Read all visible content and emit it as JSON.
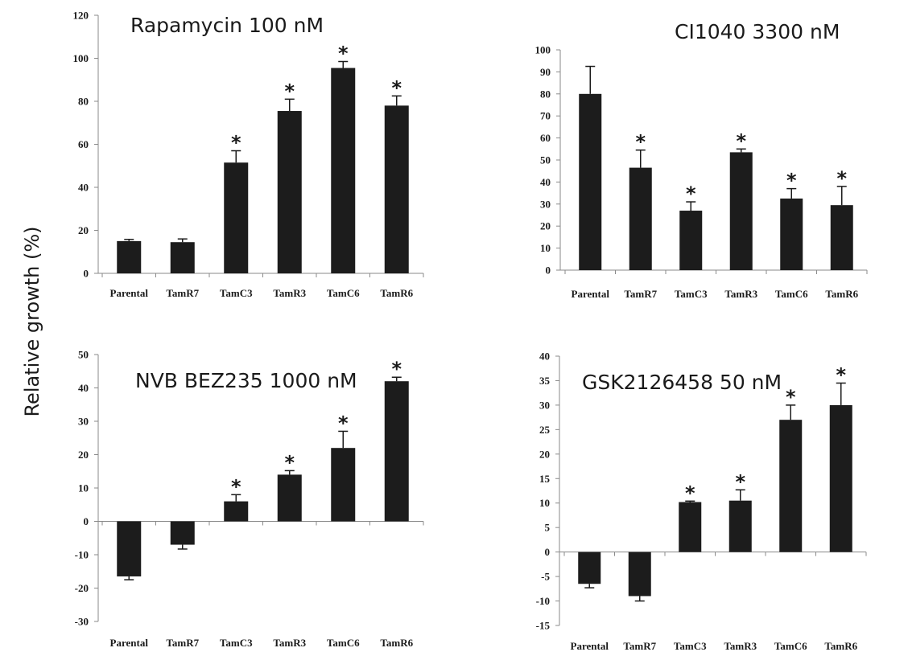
{
  "figure": {
    "ylabel": "Relative growth (%)"
  },
  "chart_data": [
    {
      "type": "bar",
      "title": "Rapamycin 100 nM",
      "categories": [
        "Parental",
        "TamR7",
        "TamC3",
        "TamR3",
        "TamC6",
        "TamR6"
      ],
      "values": [
        15,
        14.5,
        51.5,
        75.5,
        95.5,
        78
      ],
      "error": [
        0.8,
        1.5,
        5.5,
        5.5,
        3.0,
        4.5
      ],
      "significant": [
        false,
        false,
        true,
        true,
        true,
        true
      ],
      "significance_mark": "*",
      "ylim": [
        0,
        120
      ],
      "yticks": [
        0,
        20,
        40,
        60,
        80,
        100,
        120
      ],
      "bar_color": "#1c1c1c"
    },
    {
      "type": "bar",
      "title": "CI1040  3300 nM",
      "categories": [
        "Parental",
        "TamR7",
        "TamC3",
        "TamR3",
        "TamC6",
        "TamR6"
      ],
      "values": [
        80,
        46.5,
        27,
        53.5,
        32.5,
        29.5
      ],
      "error": [
        12.5,
        8.0,
        4.0,
        1.5,
        4.5,
        8.5
      ],
      "significant": [
        false,
        true,
        true,
        true,
        true,
        true
      ],
      "significance_mark": "*",
      "ylim": [
        0,
        100
      ],
      "yticks": [
        0,
        10,
        20,
        30,
        40,
        50,
        60,
        70,
        80,
        90,
        100
      ],
      "bar_color": "#1c1c1c"
    },
    {
      "type": "bar",
      "title": "NVB BEZ235 1000 nM",
      "categories": [
        "Parental",
        "TamR7",
        "TamC3",
        "TamR3",
        "TamC6",
        "TamR6"
      ],
      "values": [
        -16.5,
        -7,
        6,
        14,
        22,
        42
      ],
      "error": [
        1.0,
        1.3,
        2.0,
        1.2,
        5.0,
        1.2
      ],
      "significant": [
        false,
        false,
        true,
        true,
        true,
        true
      ],
      "significance_mark": "*",
      "ylim": [
        -30,
        50
      ],
      "yticks": [
        -30,
        -20,
        -10,
        0,
        10,
        20,
        30,
        40,
        50
      ],
      "bar_color": "#1c1c1c"
    },
    {
      "type": "bar",
      "title": "GSK2126458 50 nM",
      "categories": [
        "Parental",
        "TamR7",
        "TamC3",
        "TamR3",
        "TamC6",
        "TamR6"
      ],
      "values": [
        -6.5,
        -9,
        10.2,
        10.5,
        27,
        30
      ],
      "error": [
        0.8,
        1.0,
        0.2,
        2.2,
        3.0,
        4.5
      ],
      "significant": [
        false,
        false,
        true,
        true,
        true,
        true
      ],
      "significance_mark": "*",
      "ylim": [
        -15,
        40
      ],
      "yticks": [
        -15,
        -10,
        -5,
        0,
        5,
        10,
        15,
        20,
        25,
        30,
        35,
        40
      ],
      "bar_color": "#1c1c1c"
    }
  ]
}
